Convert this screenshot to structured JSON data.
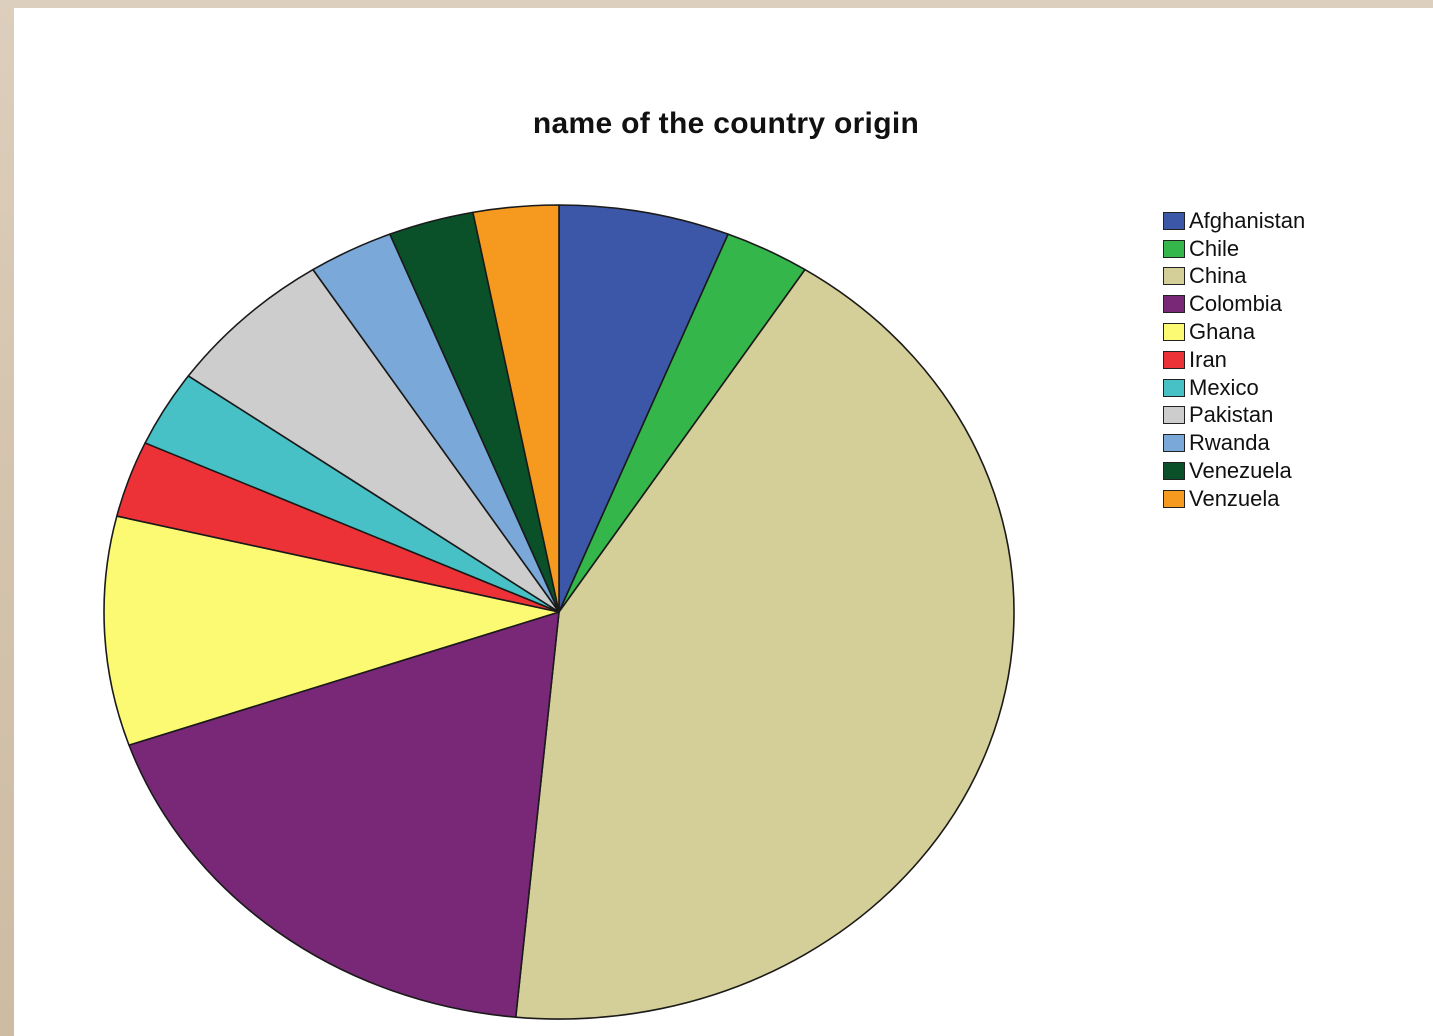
{
  "chart_data": {
    "type": "pie",
    "title": "name of the country origin",
    "legend_position": "right",
    "slices": [
      {
        "label": "Afghanistan",
        "value": 2,
        "color": "#3c57a8"
      },
      {
        "label": "Chile",
        "value": 1,
        "color": "#34b64b"
      },
      {
        "label": "China",
        "value": 14,
        "color": "#d4cf98"
      },
      {
        "label": "Colombia",
        "value": 6,
        "color": "#792878"
      },
      {
        "label": "Ghana",
        "value": 3,
        "color": "#fcf972"
      },
      {
        "label": "Iran",
        "value": 1,
        "color": "#ed3237"
      },
      {
        "label": "Mexico",
        "value": 1,
        "color": "#48c1c6"
      },
      {
        "label": "Pakistan",
        "value": 2,
        "color": "#cdcdcd"
      },
      {
        "label": "Rwanda",
        "value": 1,
        "color": "#7aa8d8"
      },
      {
        "label": "Venezuela",
        "value": 1,
        "color": "#0a512a"
      },
      {
        "label": "Venzuela",
        "value": 1,
        "color": "#f59a1f"
      }
    ]
  }
}
